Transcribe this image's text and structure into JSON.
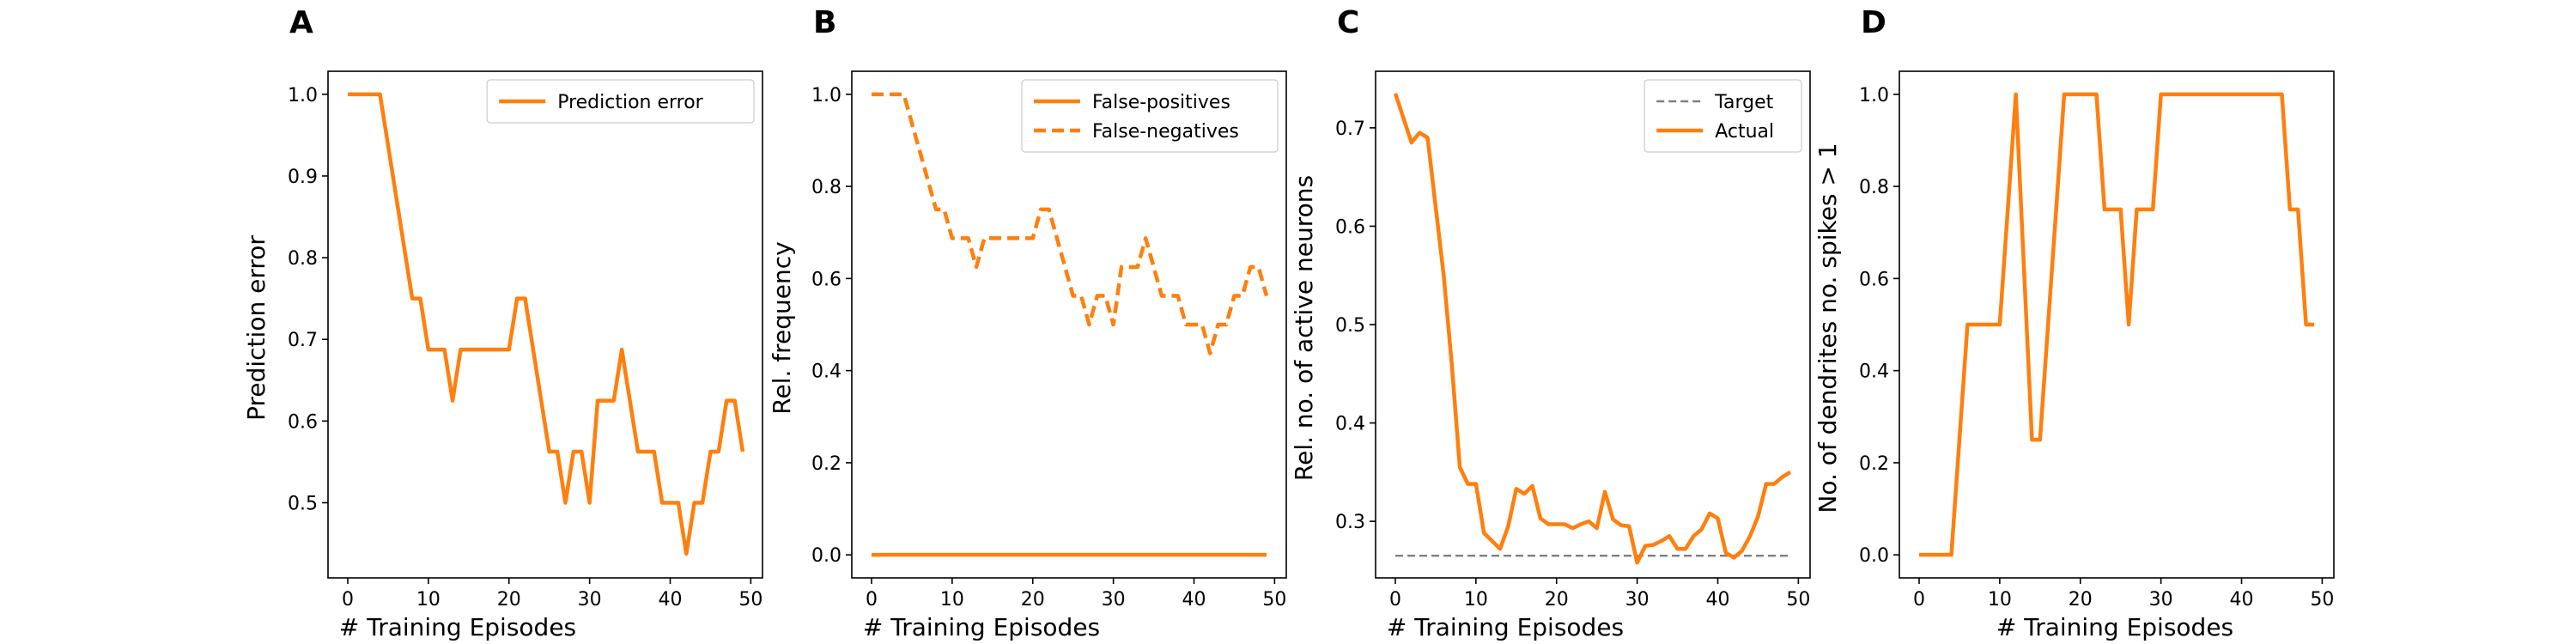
{
  "chart_data": [
    {
      "panel": "A",
      "type": "line",
      "xlabel": "# Training Episodes",
      "ylabel": "Prediction error",
      "xlim": [
        -2.45,
        51.45
      ],
      "ylim": [
        0.408,
        1.0282
      ],
      "xticks": [
        0,
        10,
        20,
        30,
        40,
        50
      ],
      "yticks": [
        0.5,
        0.6,
        0.7,
        0.8,
        0.9,
        1.0
      ],
      "ytick_labels": [
        "0.5",
        "0.6",
        "0.7",
        "0.8",
        "0.9",
        "1.0"
      ],
      "legend": "top-right",
      "series": [
        {
          "name": "Prediction error",
          "color": "#ff7f0e",
          "style": "solid",
          "values": [
            1.0,
            1.0,
            1.0,
            1.0,
            1.0,
            0.9375,
            0.875,
            0.8125,
            0.75,
            0.75,
            0.6875,
            0.6875,
            0.6875,
            0.625,
            0.6875,
            0.6875,
            0.6875,
            0.6875,
            0.6875,
            0.6875,
            0.6875,
            0.75,
            0.75,
            0.6875,
            0.625,
            0.5625,
            0.5625,
            0.5,
            0.5625,
            0.5625,
            0.5,
            0.625,
            0.625,
            0.625,
            0.6875,
            0.625,
            0.5625,
            0.5625,
            0.5625,
            0.5,
            0.5,
            0.5,
            0.4375,
            0.5,
            0.5,
            0.5625,
            0.5625,
            0.625,
            0.625,
            0.5625
          ]
        }
      ]
    },
    {
      "panel": "B",
      "type": "line",
      "xlabel": "# Training Episodes",
      "ylabel": "Rel. frequency",
      "xlim": [
        -2.45,
        51.45
      ],
      "ylim": [
        -0.05,
        1.05
      ],
      "xticks": [
        0,
        10,
        20,
        30,
        40,
        50
      ],
      "yticks": [
        0.0,
        0.2,
        0.4,
        0.6,
        0.8,
        1.0
      ],
      "ytick_labels": [
        "0.0",
        "0.2",
        "0.4",
        "0.6",
        "0.8",
        "1.0"
      ],
      "legend": "top-right",
      "series": [
        {
          "name": "False-positives",
          "color": "#ff7f0e",
          "style": "solid",
          "values": [
            0,
            0,
            0,
            0,
            0,
            0,
            0,
            0,
            0,
            0,
            0,
            0,
            0,
            0,
            0,
            0,
            0,
            0,
            0,
            0,
            0,
            0,
            0,
            0,
            0,
            0,
            0,
            0,
            0,
            0,
            0,
            0,
            0,
            0,
            0,
            0,
            0,
            0,
            0,
            0,
            0,
            0,
            0,
            0,
            0,
            0,
            0,
            0,
            0,
            0
          ]
        },
        {
          "name": "False-negatives",
          "color": "#ff7f0e",
          "style": "dashed",
          "values": [
            1.0,
            1.0,
            1.0,
            1.0,
            1.0,
            0.9375,
            0.875,
            0.8125,
            0.75,
            0.75,
            0.6875,
            0.6875,
            0.6875,
            0.625,
            0.6875,
            0.6875,
            0.6875,
            0.6875,
            0.6875,
            0.6875,
            0.6875,
            0.75,
            0.75,
            0.6875,
            0.625,
            0.5625,
            0.5625,
            0.5,
            0.5625,
            0.5625,
            0.5,
            0.625,
            0.625,
            0.625,
            0.6875,
            0.625,
            0.5625,
            0.5625,
            0.5625,
            0.5,
            0.5,
            0.5,
            0.4375,
            0.5,
            0.5,
            0.5625,
            0.5625,
            0.625,
            0.625,
            0.5625
          ]
        }
      ]
    },
    {
      "panel": "C",
      "type": "line",
      "xlabel": "# Training Episodes",
      "ylabel": "Rel. no. of active neurons",
      "xlim": [
        -2.45,
        51.45
      ],
      "ylim": [
        0.2425,
        0.7575
      ],
      "xticks": [
        0,
        10,
        20,
        30,
        40,
        50
      ],
      "yticks": [
        0.3,
        0.4,
        0.5,
        0.6,
        0.7
      ],
      "ytick_labels": [
        "0.3",
        "0.4",
        "0.5",
        "0.6",
        "0.7"
      ],
      "legend": "top-right",
      "series": [
        {
          "name": "Target",
          "color": "#7f7f7f",
          "style": "dashed",
          "values": [
            0.265,
            0.265,
            0.265,
            0.265,
            0.265,
            0.265,
            0.265,
            0.265,
            0.265,
            0.265,
            0.265,
            0.265,
            0.265,
            0.265,
            0.265,
            0.265,
            0.265,
            0.265,
            0.265,
            0.265,
            0.265,
            0.265,
            0.265,
            0.265,
            0.265,
            0.265,
            0.265,
            0.265,
            0.265,
            0.265,
            0.265,
            0.265,
            0.265,
            0.265,
            0.265,
            0.265,
            0.265,
            0.265,
            0.265,
            0.265,
            0.265,
            0.265,
            0.265,
            0.265,
            0.265,
            0.265,
            0.265,
            0.265,
            0.265,
            0.265
          ]
        },
        {
          "name": "Actual",
          "color": "#ff7f0e",
          "style": "solid",
          "values": [
            0.735,
            0.71,
            0.685,
            0.695,
            0.69,
            0.62,
            0.55,
            0.46,
            0.355,
            0.338,
            0.338,
            0.288,
            0.28,
            0.272,
            0.295,
            0.333,
            0.328,
            0.336,
            0.303,
            0.297,
            0.297,
            0.297,
            0.293,
            0.297,
            0.3,
            0.293,
            0.33,
            0.302,
            0.296,
            0.295,
            0.258,
            0.275,
            0.276,
            0.28,
            0.285,
            0.272,
            0.272,
            0.285,
            0.292,
            0.308,
            0.303,
            0.268,
            0.263,
            0.27,
            0.285,
            0.305,
            0.338,
            0.338,
            0.345,
            0.35
          ]
        }
      ]
    },
    {
      "panel": "D",
      "type": "line",
      "xlabel": "# Training Episodes",
      "ylabel": "No. of dendrites no. spikes > 1",
      "xlim": [
        -2.45,
        51.45
      ],
      "ylim": [
        -0.05,
        1.05
      ],
      "xticks": [
        0,
        10,
        20,
        30,
        40,
        50
      ],
      "yticks": [
        0.0,
        0.2,
        0.4,
        0.6,
        0.8,
        1.0
      ],
      "ytick_labels": [
        "0.0",
        "0.2",
        "0.4",
        "0.6",
        "0.8",
        "1.0"
      ],
      "legend": "none",
      "series": [
        {
          "name": "",
          "color": "#ff7f0e",
          "style": "solid",
          "values": [
            0,
            0,
            0,
            0,
            0,
            0.25,
            0.5,
            0.5,
            0.5,
            0.5,
            0.5,
            0.75,
            1.0,
            0.625,
            0.25,
            0.25,
            0.5,
            0.75,
            1.0,
            1.0,
            1.0,
            1.0,
            1.0,
            0.75,
            0.75,
            0.75,
            0.5,
            0.75,
            0.75,
            0.75,
            1.0,
            1.0,
            1.0,
            1.0,
            1.0,
            1.0,
            1.0,
            1.0,
            1.0,
            1.0,
            1.0,
            1.0,
            1.0,
            1.0,
            1.0,
            1.0,
            0.75,
            0.75,
            0.5,
            0.5
          ]
        }
      ]
    }
  ]
}
